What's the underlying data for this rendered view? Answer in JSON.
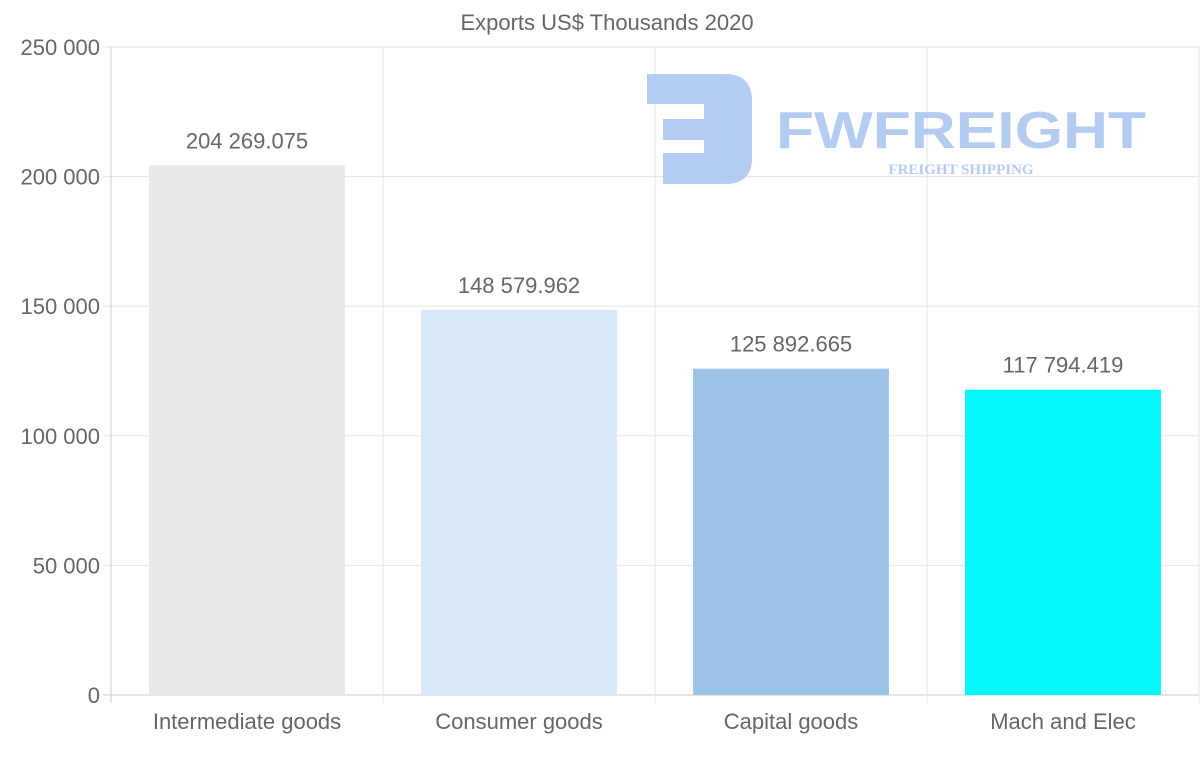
{
  "chart_data": {
    "type": "bar",
    "title": "Exports US$ Thousands 2020",
    "categories": [
      "Intermediate goods",
      "Consumer goods",
      "Capital goods",
      "Mach and Elec"
    ],
    "values": [
      204269.075,
      148579.962,
      125892.665,
      117794.419
    ],
    "value_labels": [
      "204 269.075",
      "148 579.962",
      "125 892.665",
      "117 794.419"
    ],
    "colors": [
      "#e8e8e8",
      "#d8e8f8",
      "#9cc3e6",
      "#00f8f8"
    ],
    "ylim": [
      0,
      250000
    ],
    "yticks": [
      0,
      50000,
      100000,
      150000,
      200000,
      250000
    ],
    "ytick_labels": [
      "0",
      "50 000",
      "100 000",
      "150 000",
      "200 000",
      "250 000"
    ],
    "xlabel": "",
    "ylabel": "",
    "grid": true,
    "legend": "none"
  },
  "watermark": {
    "brand": "FWFREIGHT",
    "tagline": "FREIGHT SHIPPING",
    "color": "#a8c4f0"
  }
}
